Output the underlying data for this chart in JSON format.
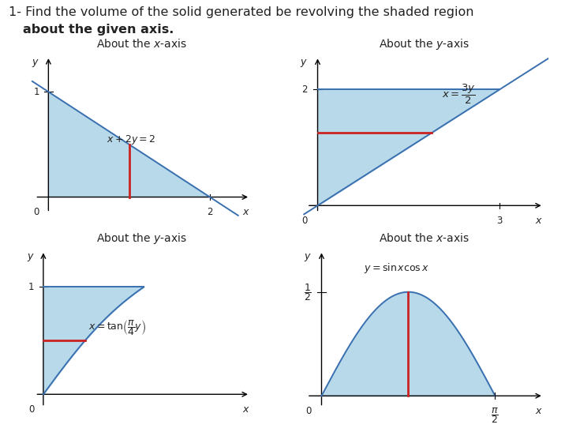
{
  "title_line1": "1- Find the volume of the solid generated be revolving the shaded region",
  "title_line2": "   about the given axis.",
  "plot1_title": "About the $x$-axis",
  "plot2_title": "About the $y$-axis",
  "plot3_title": "About the $y$-axis",
  "plot4_title": "About the $x$-axis",
  "shade_color": "#b8d9ea",
  "line_color": "#3a70b0",
  "red_line_color": "#cc2222",
  "text_color": "#222222",
  "bg_color": "#ffffff",
  "title_fontsize": 11.5,
  "subtitle_fontsize": 11.5,
  "plot_title_fontsize": 10.5
}
